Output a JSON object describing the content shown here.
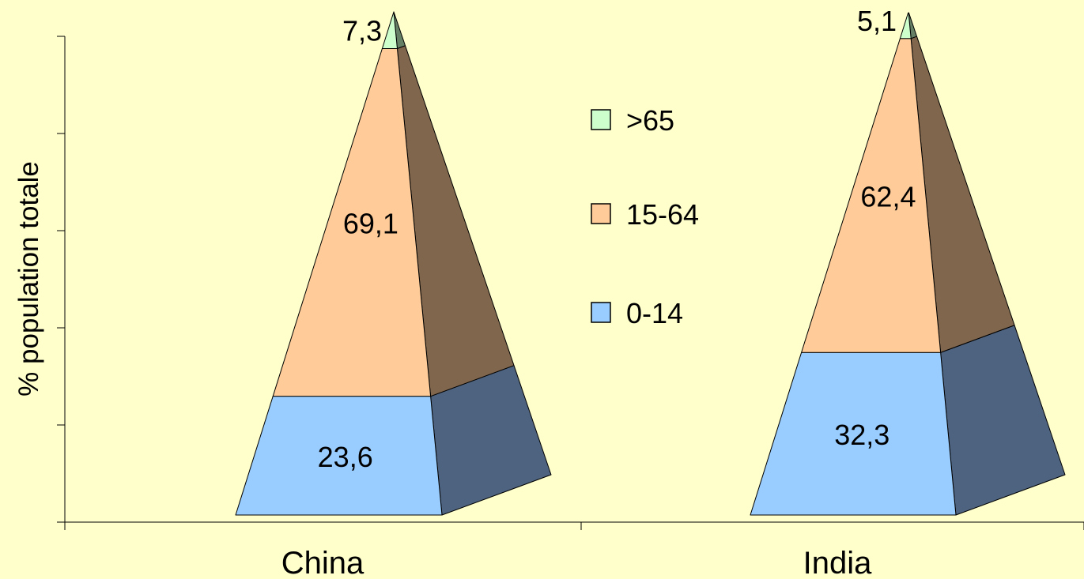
{
  "chart_data": {
    "type": "pyramid",
    "ylabel": "% population totale",
    "categories": [
      "China",
      "India"
    ],
    "series": [
      {
        "name": "0-14",
        "values": [
          23.6,
          32.3
        ],
        "labels": [
          "23,6",
          "32,3"
        ],
        "color": "#99ccff",
        "side_color": "#4d6380"
      },
      {
        "name": "15-64",
        "values": [
          69.1,
          62.4
        ],
        "labels": [
          "69,1",
          "62,4"
        ],
        "color": "#ffcc99",
        "side_color": "#80664d"
      },
      {
        "name": ">65",
        "values": [
          7.3,
          5.1
        ],
        "labels": [
          "7,3",
          "5,1"
        ],
        "color": "#ccffcc",
        "side_color": "#668066"
      }
    ],
    "legend": [
      ">65",
      "15-64",
      "0-14"
    ],
    "legend_position": "center",
    "ylim": [
      0,
      100
    ],
    "grid": false
  }
}
